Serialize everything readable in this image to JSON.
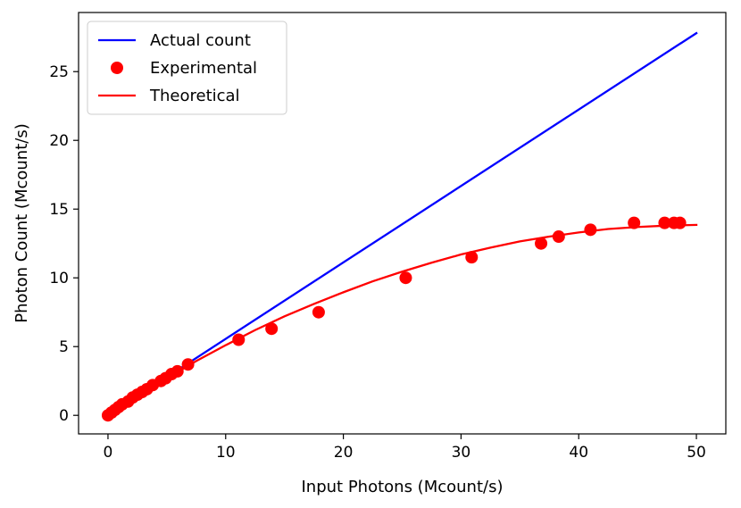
{
  "chart_data": {
    "type": "line",
    "xlabel": "Input Photons (Mcount/s)",
    "ylabel": "Photon Count (Mcount/s)",
    "xlim": [
      -2.5,
      52.5
    ],
    "ylim": [
      -1.35,
      29.3
    ],
    "xticks": [
      0,
      10,
      20,
      30,
      40,
      50
    ],
    "yticks": [
      0,
      5,
      10,
      15,
      20,
      25
    ],
    "grid": false,
    "legend_position": "top-left",
    "series": [
      {
        "name": "Actual count",
        "kind": "line",
        "color": "#0000ff",
        "x": [
          0,
          50
        ],
        "y": [
          0,
          27.8
        ]
      },
      {
        "name": "Experimental",
        "kind": "scatter",
        "color": "#ff0000",
        "x": [
          0.0,
          0.3,
          0.6,
          0.9,
          1.2,
          1.7,
          2.1,
          2.5,
          2.9,
          3.3,
          3.8,
          4.5,
          4.9,
          5.4,
          5.9,
          6.8,
          11.1,
          13.9,
          17.9,
          25.3,
          30.9,
          36.8,
          38.3,
          41.0,
          44.7,
          47.3,
          48.1,
          48.6
        ],
        "y": [
          0.0,
          0.2,
          0.4,
          0.6,
          0.8,
          1.0,
          1.3,
          1.5,
          1.7,
          1.9,
          2.2,
          2.5,
          2.7,
          3.0,
          3.2,
          3.7,
          5.5,
          6.3,
          7.5,
          10.0,
          11.5,
          12.5,
          13.0,
          13.5,
          14.0,
          14.0,
          14.0,
          14.0
        ]
      },
      {
        "name": "Theoretical",
        "kind": "line",
        "color": "#ff0000",
        "x": [
          0,
          2.5,
          5,
          7.5,
          10,
          12.5,
          15,
          17.5,
          20,
          22.5,
          25,
          27.5,
          30,
          32.5,
          35,
          37.5,
          40,
          42.5,
          45,
          47.5,
          50
        ],
        "y": [
          0,
          1.36,
          2.7,
          3.95,
          5.1,
          6.2,
          7.2,
          8.1,
          8.95,
          9.75,
          10.45,
          11.1,
          11.7,
          12.2,
          12.65,
          13.0,
          13.3,
          13.55,
          13.7,
          13.8,
          13.85
        ]
      }
    ]
  }
}
